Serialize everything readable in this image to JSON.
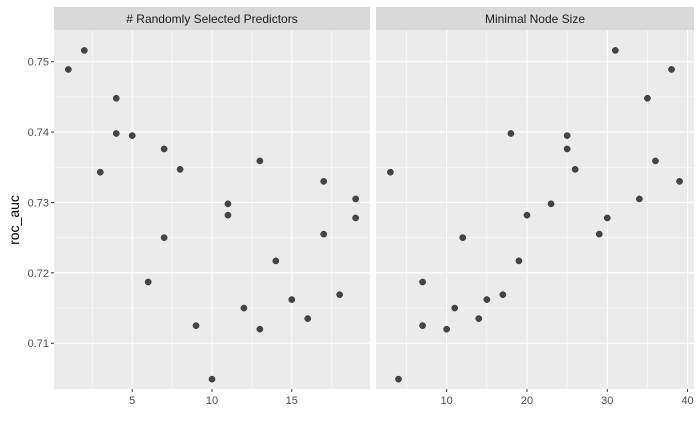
{
  "chart_data": {
    "type": "scatter",
    "ylabel": "roc_auc",
    "xlabel": "",
    "ylim": [
      0.7035,
      0.7545
    ],
    "yticks": [
      0.71,
      0.72,
      0.73,
      0.74,
      0.75
    ],
    "y_tick_labels": [
      "0.71",
      "0.72",
      "0.73",
      "0.74",
      "0.75"
    ],
    "grid": true,
    "point_color": "#333333",
    "panel_background": "#ebebeb",
    "strip_background": "#d9d9d9",
    "gridline_color": "#ffffff",
    "facets": [
      {
        "title": "# Randomly Selected Predictors",
        "xlim": [
          0.1,
          19.9
        ],
        "xticks": [
          5,
          10,
          15
        ],
        "x_tick_labels": [
          "5",
          "10",
          "15"
        ],
        "points": [
          [
            1,
            0.7489
          ],
          [
            2,
            0.7516
          ],
          [
            3,
            0.7343
          ],
          [
            4,
            0.7448
          ],
          [
            4,
            0.7398
          ],
          [
            5,
            0.7395
          ],
          [
            6,
            0.7187
          ],
          [
            7,
            0.7376
          ],
          [
            7,
            0.725
          ],
          [
            8,
            0.7347
          ],
          [
            9,
            0.7125
          ],
          [
            10,
            0.7049
          ],
          [
            11,
            0.7298
          ],
          [
            11,
            0.7282
          ],
          [
            12,
            0.715
          ],
          [
            13,
            0.7359
          ],
          [
            13,
            0.712
          ],
          [
            14,
            0.7217
          ],
          [
            15,
            0.7162
          ],
          [
            16,
            0.7135
          ],
          [
            17,
            0.733
          ],
          [
            17,
            0.7255
          ],
          [
            18,
            0.7169
          ],
          [
            19,
            0.7305
          ],
          [
            19,
            0.7278
          ]
        ]
      },
      {
        "title": "Minimal Node Size",
        "xlim": [
          1.2,
          40.8
        ],
        "xticks": [
          10,
          20,
          30,
          40
        ],
        "x_tick_labels": [
          "10",
          "20",
          "30",
          "40"
        ],
        "points": [
          [
            3,
            0.7343
          ],
          [
            4,
            0.7049
          ],
          [
            7,
            0.7187
          ],
          [
            7,
            0.7125
          ],
          [
            10,
            0.712
          ],
          [
            11,
            0.715
          ],
          [
            12,
            0.725
          ],
          [
            14,
            0.7135
          ],
          [
            15,
            0.7162
          ],
          [
            17,
            0.7169
          ],
          [
            18,
            0.7398
          ],
          [
            19,
            0.7217
          ],
          [
            20,
            0.7282
          ],
          [
            23,
            0.7298
          ],
          [
            25,
            0.7395
          ],
          [
            25,
            0.7376
          ],
          [
            26,
            0.7347
          ],
          [
            29,
            0.7255
          ],
          [
            30,
            0.7278
          ],
          [
            31,
            0.7516
          ],
          [
            34,
            0.7305
          ],
          [
            35,
            0.7448
          ],
          [
            36,
            0.7359
          ],
          [
            38,
            0.7489
          ],
          [
            39,
            0.733
          ]
        ]
      }
    ]
  }
}
